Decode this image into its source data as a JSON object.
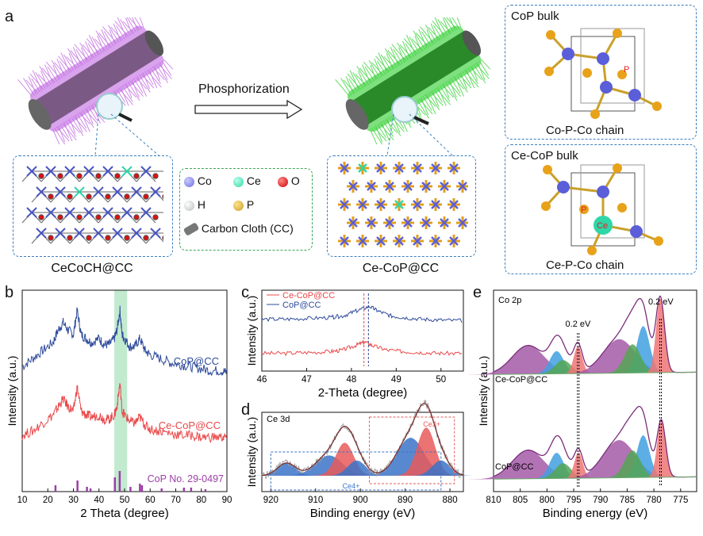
{
  "panel_a": {
    "label": "a",
    "arrow_text": "Phosphorization",
    "left_caption": "CeCoCH@CC",
    "right_caption": "Ce-CoP@CC",
    "legend": {
      "co": "Co",
      "ce": "Ce",
      "o": "O",
      "h": "H",
      "p": "P",
      "cc": "Carbon Cloth (CC)"
    },
    "bulk_top": {
      "title": "CoP bulk",
      "chain": "Co-P-Co chain",
      "atom_label": "P"
    },
    "bulk_bottom": {
      "title": "Ce-CoP bulk",
      "chain": "Ce-P-Co chain",
      "atom_label": "P",
      "ce_label": "Ce"
    }
  },
  "colors": {
    "co": "#6a6ee0",
    "ce": "#2fd6a8",
    "o": "#dd1111",
    "h": "#dddddd",
    "p": "#e8a21a",
    "purple_fiber": "#c36fe0",
    "green_fiber": "#3cd23c",
    "blue_line": "#2e4b9b",
    "red_line": "#e8484a"
  },
  "chart_data": [
    {
      "id": "b",
      "type": "line",
      "label": "b",
      "xlabel": "2 Theta (degree)",
      "ylabel": "Intensity (a.u.)",
      "xlim": [
        10,
        90
      ],
      "xticks": [
        10,
        20,
        30,
        40,
        50,
        60,
        70,
        80,
        90
      ],
      "highlight_band": [
        46,
        51
      ],
      "series": [
        {
          "name": "CoP@CC",
          "color": "#2e4b9b",
          "x": [
            10,
            14,
            18,
            22,
            24,
            26,
            28,
            30,
            31.5,
            33,
            35,
            37,
            40,
            42,
            44,
            46,
            47,
            48.2,
            49,
            50,
            52,
            54,
            56,
            58,
            60,
            64,
            68,
            72,
            76,
            80,
            84,
            88,
            90
          ],
          "y": [
            62,
            66,
            70,
            74,
            80,
            84,
            80,
            78,
            90,
            78,
            76,
            74,
            76,
            73,
            73,
            76,
            80,
            90,
            78,
            76,
            72,
            72,
            76,
            70,
            68,
            66,
            64,
            63,
            62,
            61,
            60,
            60,
            59
          ]
        },
        {
          "name": "Ce-CoP@CC",
          "color": "#e8484a",
          "x": [
            10,
            14,
            18,
            22,
            24,
            26,
            28,
            30,
            31.5,
            33,
            35,
            37,
            40,
            42,
            44,
            46,
            47,
            48.2,
            49,
            50,
            52,
            54,
            56,
            58,
            60,
            64,
            68,
            72,
            76,
            80,
            84,
            88,
            90
          ],
          "y": [
            28,
            30,
            34,
            38,
            42,
            46,
            42,
            40,
            52,
            40,
            38,
            37,
            38,
            36,
            36,
            38,
            42,
            54,
            40,
            38,
            35,
            34,
            37,
            33,
            31,
            30,
            29,
            28,
            28,
            27,
            27,
            27,
            27
          ]
        }
      ],
      "reference": {
        "name": "CoP No. 29-0497",
        "color": "#9b3fa6",
        "positions": [
          23,
          31.6,
          35.3,
          36.7,
          46.2,
          48.1,
          52.3,
          56.0,
          56.8,
          64.5,
          73.2,
          76.0,
          81.6
        ],
        "heights": [
          8,
          14,
          6,
          4,
          18,
          26,
          6,
          10,
          8,
          4,
          5,
          5,
          3
        ]
      }
    },
    {
      "id": "c",
      "type": "line",
      "label": "c",
      "xlabel": "2-Theta (degree)",
      "ylabel": "Intensity (a.u.)",
      "xlim": [
        46,
        50.5
      ],
      "xticks": [
        46,
        47,
        48,
        49,
        50
      ],
      "vlines": [
        48.28,
        48.38
      ],
      "series": [
        {
          "name": "Ce-CoP@CC",
          "color": "#e8484a",
          "x": [
            46,
            46.5,
            47,
            47.5,
            47.8,
            48.1,
            48.3,
            48.5,
            48.8,
            49.2,
            49.6,
            50,
            50.5
          ],
          "y": [
            22,
            22,
            23,
            24,
            26,
            32,
            36,
            31,
            26,
            24,
            23,
            22,
            22
          ]
        },
        {
          "name": "CoP@CC",
          "color": "#2e4b9b",
          "x": [
            46,
            46.5,
            47,
            47.5,
            47.8,
            48.1,
            48.4,
            48.6,
            48.9,
            49.2,
            49.6,
            50,
            50.5
          ],
          "y": [
            64,
            64,
            65,
            66,
            68,
            74,
            80,
            74,
            68,
            66,
            64,
            63,
            62
          ]
        }
      ]
    },
    {
      "id": "d",
      "type": "area",
      "label": "d",
      "title": "Ce 3d",
      "xlabel": "Binding energy (eV)",
      "ylabel": "Intensity (a.u.)",
      "xlim": [
        922,
        877
      ],
      "xticks": [
        920,
        910,
        900,
        890,
        880
      ],
      "annotations": [
        "Ce3+",
        "Ce4+"
      ],
      "peaks": [
        {
          "center": 916.5,
          "height": 10,
          "width": 2.0,
          "color": "#3b73c8"
        },
        {
          "center": 907.0,
          "height": 16,
          "width": 3.0,
          "color": "#3b73c8"
        },
        {
          "center": 903.5,
          "height": 26,
          "width": 2.0,
          "color": "#e85a5a"
        },
        {
          "center": 900.8,
          "height": 12,
          "width": 2.0,
          "color": "#3b73c8"
        },
        {
          "center": 888.8,
          "height": 30,
          "width": 3.0,
          "color": "#3b73c8"
        },
        {
          "center": 885.3,
          "height": 38,
          "width": 2.0,
          "color": "#e85a5a"
        },
        {
          "center": 882.0,
          "height": 12,
          "width": 2.0,
          "color": "#3b73c8"
        }
      ]
    },
    {
      "id": "e",
      "type": "area",
      "label": "e",
      "title": "Co 2p",
      "xlabel": "Binding energy (eV)",
      "ylabel": "Intensity (a.u.)",
      "xlim": [
        810,
        772
      ],
      "xticks": [
        810,
        805,
        800,
        795,
        790,
        785,
        780,
        775
      ],
      "shift_label": "0.2 eV",
      "vlines": [
        794.3,
        794.0,
        778.9,
        778.6
      ],
      "series": [
        {
          "name": "Ce-CoP@CC",
          "color": "#7a2e7a",
          "peaks": [
            {
              "center": 803.5,
              "height": 38,
              "width": 3.0,
              "color": "#a45aa8"
            },
            {
              "center": 798.2,
              "height": 30,
              "width": 1.3,
              "color": "#3fa0e0"
            },
            {
              "center": 797.0,
              "height": 18,
              "width": 1.5,
              "color": "#53a653"
            },
            {
              "center": 794.2,
              "height": 36,
              "width": 0.8,
              "color": "#f07474"
            },
            {
              "center": 786.5,
              "height": 45,
              "width": 3.0,
              "color": "#a45aa8"
            },
            {
              "center": 782.0,
              "height": 62,
              "width": 1.2,
              "color": "#3fa0e0"
            },
            {
              "center": 784.0,
              "height": 38,
              "width": 1.5,
              "color": "#53a653"
            },
            {
              "center": 778.8,
              "height": 98,
              "width": 0.8,
              "color": "#f07474"
            }
          ]
        },
        {
          "name": "CoP@CC",
          "color": "#7a2e7a",
          "peaks": [
            {
              "center": 803.5,
              "height": 38,
              "width": 3.0,
              "color": "#a45aa8"
            },
            {
              "center": 798.2,
              "height": 34,
              "width": 1.3,
              "color": "#3fa0e0"
            },
            {
              "center": 797.0,
              "height": 20,
              "width": 1.5,
              "color": "#53a653"
            },
            {
              "center": 794.1,
              "height": 34,
              "width": 0.8,
              "color": "#f07474"
            },
            {
              "center": 786.5,
              "height": 50,
              "width": 3.0,
              "color": "#a45aa8"
            },
            {
              "center": 782.0,
              "height": 56,
              "width": 1.2,
              "color": "#3fa0e0"
            },
            {
              "center": 784.0,
              "height": 36,
              "width": 1.5,
              "color": "#53a653"
            },
            {
              "center": 778.6,
              "height": 74,
              "width": 0.8,
              "color": "#f07474"
            }
          ]
        }
      ]
    }
  ]
}
